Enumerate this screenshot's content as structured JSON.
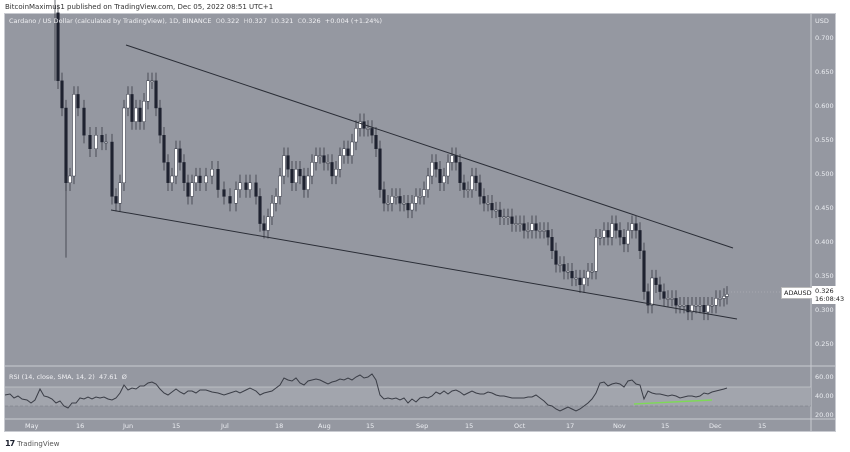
{
  "header": {
    "published": "BitcoinMaximus1 published on TradingView.com, Dec 05, 2022 08:51 UTC+1"
  },
  "legend": {
    "symbol": "Cardano / US Dollar (calculated by TradingView), 1D, BINANCE",
    "o_label": "O",
    "o": "0.322",
    "h_label": "H",
    "h": "0.327",
    "l_label": "L",
    "l": "0.321",
    "c_label": "C",
    "c": "0.326",
    "change": "+0.004 (+1.24%)"
  },
  "price_axis": {
    "currency": "USD",
    "ticks": [
      "0.700",
      "0.650",
      "0.600",
      "0.550",
      "0.500",
      "0.450",
      "0.400",
      "0.350",
      "0.300",
      "0.250"
    ]
  },
  "price_tag": {
    "symbol": "ADAUSD",
    "price": "0.326",
    "countdown": "16:08:43"
  },
  "rsi": {
    "label": "RSI (14, close, SMA, 14, 2)",
    "value": "47.61",
    "extra": "Ø",
    "ticks": [
      "60.00",
      "40.00",
      "20.00"
    ]
  },
  "time_axis": {
    "ticks": [
      "May",
      "16",
      "Jun",
      "15",
      "Jul",
      "18",
      "Aug",
      "15",
      "Sep",
      "15",
      "Oct",
      "17",
      "Nov",
      "15",
      "Dec",
      "15"
    ]
  },
  "footer": {
    "brand_mark": "17",
    "brand": "TradingView"
  },
  "colors": {
    "background": "#9598a1",
    "up_candle": "#ffffff",
    "down_candle": "#1e2230",
    "trendline": "#2a2d36",
    "rsi_line": "#3a3d46",
    "divergence": "#7ed957"
  },
  "chart_data": {
    "type": "candlestick",
    "title": "Cardano / US Dollar (calculated by TradingView), 1D, BINANCE",
    "xlabel": "",
    "ylabel": "USD",
    "ylim": [
      0.21,
      0.74
    ],
    "x_ticks": [
      "May",
      "16",
      "Jun",
      "15",
      "Jul",
      "18",
      "Aug",
      "15",
      "Sep",
      "15",
      "Oct",
      "17",
      "Nov",
      "15",
      "Dec",
      "15"
    ],
    "y_ticks": [
      0.25,
      0.3,
      0.35,
      0.4,
      0.45,
      0.5,
      0.55,
      0.6,
      0.65,
      0.7
    ],
    "last": {
      "open": 0.322,
      "high": 0.327,
      "low": 0.321,
      "close": 0.326,
      "change": 0.004,
      "change_pct": 1.24
    },
    "approx_closes": [
      {
        "date": "May 10",
        "close": 0.64
      },
      {
        "date": "May 12",
        "close": 0.49
      },
      {
        "date": "May 16",
        "close": 0.6
      },
      {
        "date": "May 26",
        "close": 0.46
      },
      {
        "date": "Jun 01",
        "close": 0.6
      },
      {
        "date": "Jun 05",
        "close": 0.64
      },
      {
        "date": "Jun 13",
        "close": 0.48
      },
      {
        "date": "Jun 18",
        "close": 0.45
      },
      {
        "date": "Jul 01",
        "close": 0.46
      },
      {
        "date": "Jul 13",
        "close": 0.42
      },
      {
        "date": "Jul 20",
        "close": 0.52
      },
      {
        "date": "Aug 08",
        "close": 0.56
      },
      {
        "date": "Aug 14",
        "close": 0.57
      },
      {
        "date": "Aug 19",
        "close": 0.46
      },
      {
        "date": "Sep 05",
        "close": 0.5
      },
      {
        "date": "Sep 10",
        "close": 0.52
      },
      {
        "date": "Sep 20",
        "close": 0.46
      },
      {
        "date": "Oct 05",
        "close": 0.43
      },
      {
        "date": "Oct 15",
        "close": 0.36
      },
      {
        "date": "Oct 21",
        "close": 0.35
      },
      {
        "date": "Oct 28",
        "close": 0.42
      },
      {
        "date": "Nov 05",
        "close": 0.42
      },
      {
        "date": "Nov 09",
        "close": 0.31
      },
      {
        "date": "Nov 21",
        "close": 0.31
      },
      {
        "date": "Dec 05",
        "close": 0.326
      }
    ],
    "annotations": [
      {
        "type": "trendline",
        "name": "upper",
        "from": {
          "date": "Jun 01",
          "price": 0.69
        },
        "to": {
          "date": "Dec 07",
          "price": 0.39
        }
      },
      {
        "type": "trendline",
        "name": "lower",
        "from": {
          "date": "May 26",
          "price": 0.445
        },
        "to": {
          "date": "Dec 08",
          "price": 0.285
        }
      }
    ],
    "rsi": {
      "params": "14, close, SMA, 14, 2",
      "value": 47.61,
      "ylim": [
        15,
        70
      ],
      "levels": [
        30,
        50
      ],
      "divergence": "bullish divergence line (green) Nov 09 - Dec 01"
    }
  }
}
